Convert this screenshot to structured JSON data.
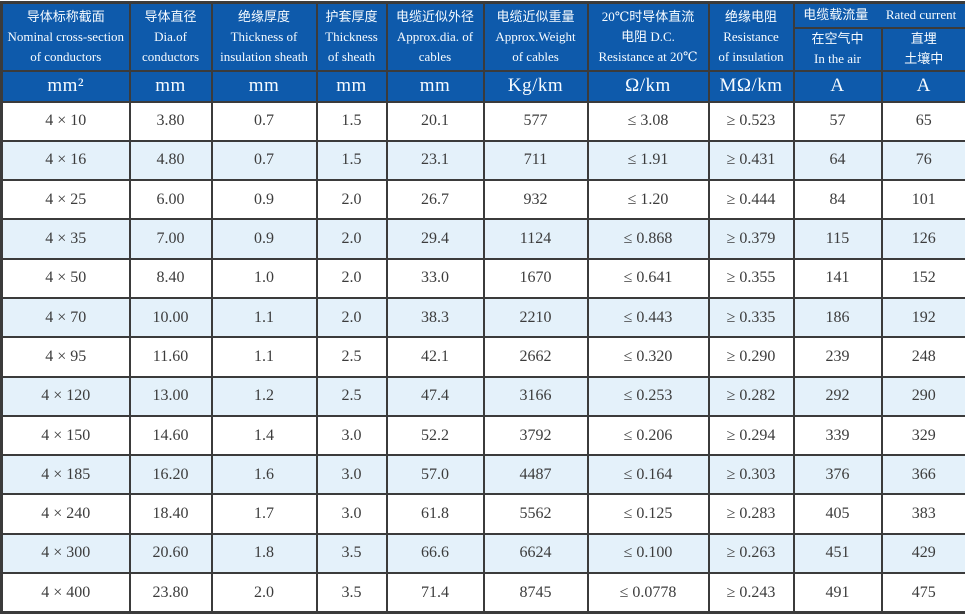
{
  "table": {
    "title_semantic": "cable-specification-table",
    "colors": {
      "header_bg": "#0e5aab",
      "header_text": "#f6fbff",
      "stripe_bg": "#e4f1fa",
      "border": "#3b3b3b",
      "body_text": "#3c3c3c"
    },
    "columns": [
      {
        "lines": [
          "导体标称截面",
          "Nominal cross-section",
          "of conductors"
        ]
      },
      {
        "lines": [
          "导体直径",
          "Dia.of",
          "conductors"
        ]
      },
      {
        "lines": [
          "绝缘厚度",
          "Thickness of",
          "insulation sheath"
        ]
      },
      {
        "lines": [
          "护套厚度",
          "Thickness",
          "of sheath"
        ]
      },
      {
        "lines": [
          "电缆近似外径",
          "Approx.dia. of",
          "cables"
        ]
      },
      {
        "lines": [
          "电缆近似重量",
          "Approx.Weight",
          "of cables"
        ]
      },
      {
        "lines": [
          "20℃时导体直流",
          "电阻 D.C.",
          "Resistance at 20℃"
        ]
      },
      {
        "lines": [
          "绝缘电阻",
          "Resistance",
          "of insulation"
        ]
      }
    ],
    "rated_current_group": {
      "zh": "电缆载流量",
      "en": "Rated current",
      "sub_columns": [
        {
          "lines": [
            "在空气中",
            "In the air"
          ]
        },
        {
          "lines": [
            "直埋",
            "土壤中"
          ]
        }
      ]
    },
    "units": [
      "mm²",
      "mm",
      "mm",
      "mm",
      "mm",
      "Kg/km",
      "Ω/km",
      "MΩ/km",
      "A",
      "A"
    ],
    "rows": [
      [
        "4 × 10",
        "3.80",
        "0.7",
        "1.5",
        "20.1",
        "577",
        "≤ 3.08",
        "≥ 0.523",
        "57",
        "65"
      ],
      [
        "4 × 16",
        "4.80",
        "0.7",
        "1.5",
        "23.1",
        "711",
        "≤ 1.91",
        "≥ 0.431",
        "64",
        "76"
      ],
      [
        "4 × 25",
        "6.00",
        "0.9",
        "2.0",
        "26.7",
        "932",
        "≤ 1.20",
        "≥ 0.444",
        "84",
        "101"
      ],
      [
        "4 × 35",
        "7.00",
        "0.9",
        "2.0",
        "29.4",
        "1124",
        "≤ 0.868",
        "≥ 0.379",
        "115",
        "126"
      ],
      [
        "4 × 50",
        "8.40",
        "1.0",
        "2.0",
        "33.0",
        "1670",
        "≤ 0.641",
        "≥ 0.355",
        "141",
        "152"
      ],
      [
        "4 × 70",
        "10.00",
        "1.1",
        "2.0",
        "38.3",
        "2210",
        "≤ 0.443",
        "≥ 0.335",
        "186",
        "192"
      ],
      [
        "4 × 95",
        "11.60",
        "1.1",
        "2.5",
        "42.1",
        "2662",
        "≤ 0.320",
        "≥ 0.290",
        "239",
        "248"
      ],
      [
        "4 × 120",
        "13.00",
        "1.2",
        "2.5",
        "47.4",
        "3166",
        "≤ 0.253",
        "≥ 0.282",
        "292",
        "290"
      ],
      [
        "4 × 150",
        "14.60",
        "1.4",
        "3.0",
        "52.2",
        "3792",
        "≤ 0.206",
        "≥ 0.294",
        "339",
        "329"
      ],
      [
        "4 × 185",
        "16.20",
        "1.6",
        "3.0",
        "57.0",
        "4487",
        "≤ 0.164",
        "≥ 0.303",
        "376",
        "366"
      ],
      [
        "4 × 240",
        "18.40",
        "1.7",
        "3.0",
        "61.8",
        "5562",
        "≤ 0.125",
        "≥ 0.283",
        "405",
        "383"
      ],
      [
        "4 × 300",
        "20.60",
        "1.8",
        "3.5",
        "66.6",
        "6624",
        "≤ 0.100",
        "≥ 0.263",
        "451",
        "429"
      ],
      [
        "4 × 400",
        "23.80",
        "2.0",
        "3.5",
        "71.4",
        "8745",
        "≤ 0.0778",
        "≥ 0.243",
        "491",
        "475"
      ]
    ]
  }
}
